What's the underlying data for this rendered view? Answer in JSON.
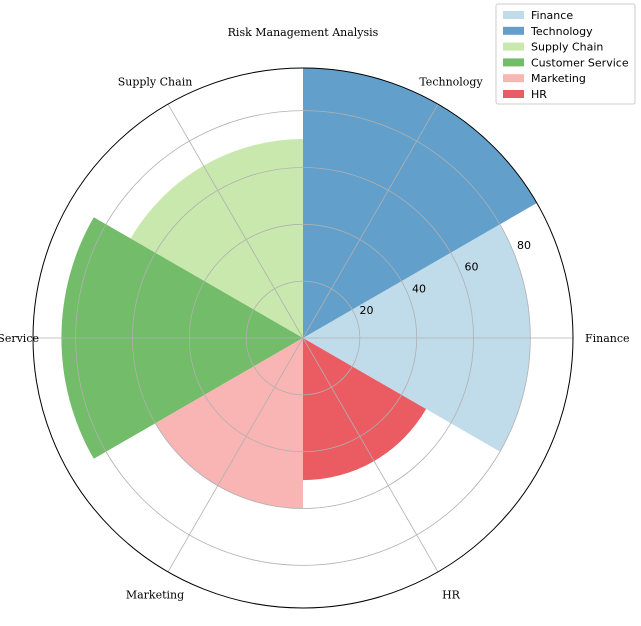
{
  "chart_data": {
    "type": "polar-bar",
    "title": "Risk Management Analysis",
    "categories": [
      "Finance",
      "Technology",
      "Supply Chain",
      "Customer Service",
      "Marketing",
      "HR"
    ],
    "values": [
      80,
      95,
      70,
      85,
      60,
      50
    ],
    "colors": [
      "#c0dcea",
      "#62a0cb",
      "#c9e8ae",
      "#72bc6a",
      "#f9b5b3",
      "#eb5c62"
    ],
    "radial_ticks": [
      20,
      40,
      60,
      80
    ],
    "rlim": [
      0,
      95
    ],
    "grid": true,
    "legend": {
      "placement": "top-right",
      "entries": [
        "Finance",
        "Technology",
        "Supply Chain",
        "Customer Service",
        "Marketing",
        "HR"
      ]
    }
  }
}
